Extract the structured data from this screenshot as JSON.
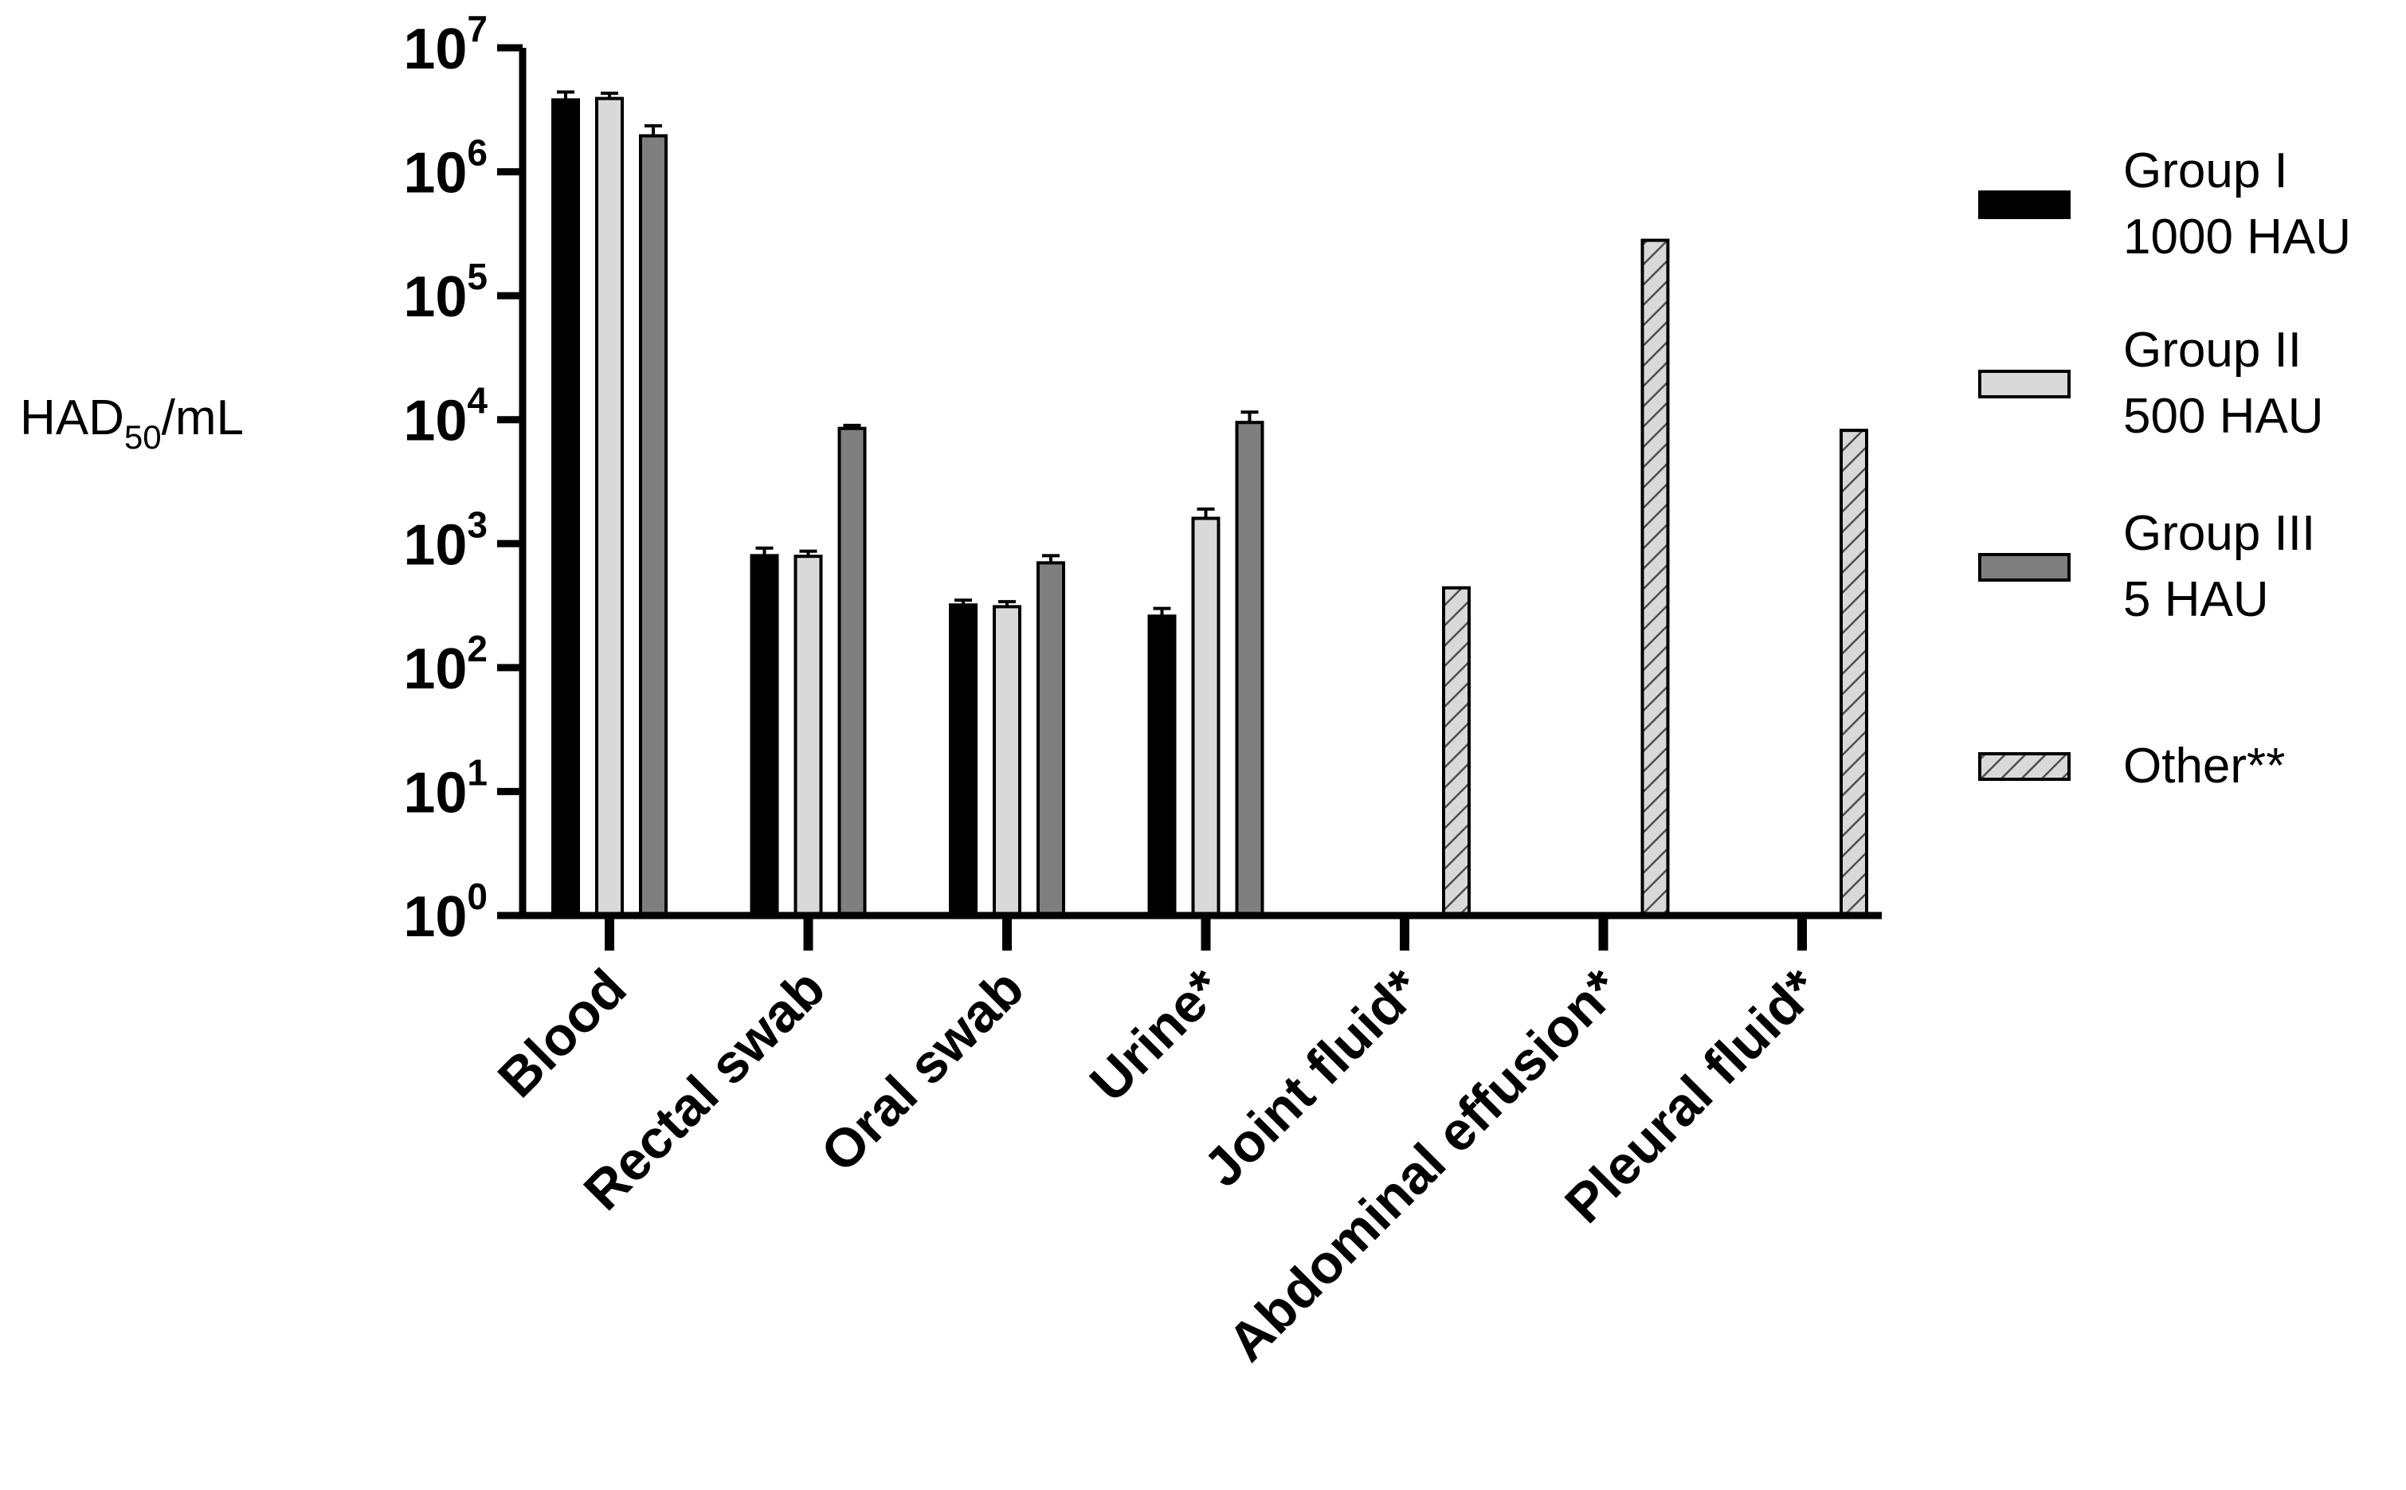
{
  "chart_data": {
    "type": "bar",
    "yscale": "log",
    "ylim": [
      1,
      10000000
    ],
    "ylabel": {
      "main": "HAD",
      "sub": "50",
      "unit": "/mL"
    },
    "yticks": [
      {
        "base": "10",
        "exp": "0",
        "value": 1
      },
      {
        "base": "10",
        "exp": "1",
        "value": 10
      },
      {
        "base": "10",
        "exp": "2",
        "value": 100
      },
      {
        "base": "10",
        "exp": "3",
        "value": 1000
      },
      {
        "base": "10",
        "exp": "4",
        "value": 10000
      },
      {
        "base": "10",
        "exp": "5",
        "value": 100000
      },
      {
        "base": "10",
        "exp": "6",
        "value": 1000000
      },
      {
        "base": "10",
        "exp": "7",
        "value": 10000000
      }
    ],
    "categories": [
      "Blood",
      "Rectal swab",
      "Oral swab",
      "Urine*",
      "Joint fluid*",
      "Abdominal effusion*",
      "Pleural fluid*"
    ],
    "legend_position": "right",
    "series": [
      {
        "name_line1": "Group I",
        "name_line2": "1000 HAU",
        "color": "#000000",
        "pattern": "solid",
        "values": [
          3800000,
          800,
          320,
          260,
          null,
          null,
          null
        ],
        "errors": [
          600000,
          120,
          30,
          40,
          null,
          null,
          null
        ]
      },
      {
        "name_line1": "Group II",
        "name_line2": "500 HAU",
        "color": "#d9d9d9",
        "pattern": "solid",
        "values": [
          3900000,
          790,
          310,
          1600,
          null,
          null,
          null
        ],
        "errors": [
          400000,
          80,
          30,
          300,
          null,
          null,
          null
        ]
      },
      {
        "name_line1": "Group III",
        "name_line2": "5 HAU",
        "color": "#7f7f7f",
        "pattern": "solid",
        "values": [
          1950000,
          8500,
          700,
          9500,
          null,
          null,
          null
        ],
        "errors": [
          400000,
          500,
          100,
          2000,
          null,
          null,
          null
        ]
      },
      {
        "name_line1": "Other**",
        "name_line2": "",
        "color": "#d9d9d9",
        "pattern": "hatched",
        "values": [
          null,
          null,
          null,
          null,
          440,
          280000,
          8200
        ],
        "errors": [
          null,
          null,
          null,
          null,
          null,
          null,
          null
        ]
      }
    ]
  }
}
